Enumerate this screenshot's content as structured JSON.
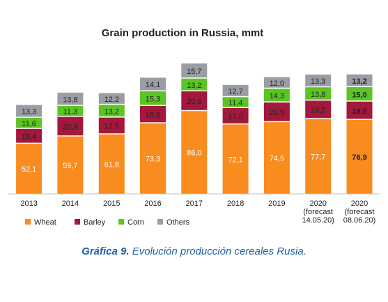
{
  "chart_data": {
    "type": "stacked-bar",
    "title": "Grain production in Russia, mmt",
    "categories": [
      [
        "2013"
      ],
      [
        "2014"
      ],
      [
        "2015"
      ],
      [
        "2016"
      ],
      [
        "2017"
      ],
      [
        "2018"
      ],
      [
        "2019"
      ],
      [
        "2020",
        "(forecast",
        "14.05.20)"
      ],
      [
        "2020",
        "(forecast",
        "08.06.20)"
      ]
    ],
    "series": [
      {
        "name": "Wheat",
        "color": "#f98c1f",
        "values": [
          52.1,
          59.7,
          61.8,
          73.3,
          86.0,
          72.1,
          74.5,
          77.7,
          76.9
        ],
        "labels": [
          "52,1",
          "59,7",
          "61,8",
          "73,3",
          "86,0",
          "72,1",
          "74,5",
          "77,7",
          "76,9"
        ]
      },
      {
        "name": "Barley",
        "color": "#a3183c",
        "values": [
          15.4,
          20.4,
          17.5,
          18.0,
          20.6,
          17.0,
          20.5,
          19.2,
          19.0
        ],
        "labels": [
          "15,4",
          "20,4",
          "17,5",
          "18,0",
          "20,6",
          "17,0",
          "20,5",
          "19,2",
          "19,0"
        ]
      },
      {
        "name": "Corn",
        "color": "#5cc424",
        "values": [
          11.6,
          11.3,
          13.2,
          15.3,
          13.2,
          11.4,
          14.3,
          13.8,
          15.0
        ],
        "labels": [
          "11,6",
          "11,3",
          "13,2",
          "15,3",
          "13,2",
          "11,4",
          "14,3",
          "13,8",
          "15,0"
        ]
      },
      {
        "name": "Others",
        "color": "#9a9da3",
        "values": [
          13.3,
          13.8,
          12.2,
          14.1,
          15.7,
          12.7,
          12.0,
          13.3,
          13.2
        ],
        "labels": [
          "13,3",
          "13,8",
          "12,2",
          "14,1",
          "15,7",
          "12,7",
          "12,0",
          "13,3",
          "13,2"
        ]
      }
    ],
    "bold_category_index": 8,
    "legend_position": "bottom-left",
    "grid": false
  },
  "caption": {
    "lead": "Gráfica 9.",
    "rest": " Evolución producción cereales Rusia."
  }
}
